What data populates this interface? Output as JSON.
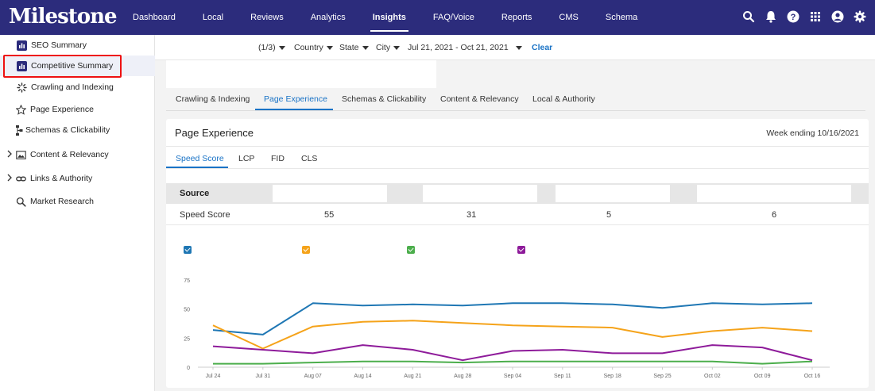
{
  "app": {
    "logo": "Milestone"
  },
  "nav": {
    "items": [
      {
        "label": "Dashboard"
      },
      {
        "label": "Local"
      },
      {
        "label": "Reviews"
      },
      {
        "label": "Analytics"
      },
      {
        "label": "Insights"
      },
      {
        "label": "FAQ/Voice"
      },
      {
        "label": "Reports"
      },
      {
        "label": "CMS"
      },
      {
        "label": "Schema"
      }
    ],
    "active": "Insights",
    "icons": [
      "search-icon",
      "bell-icon",
      "help-icon",
      "apps-grid-icon",
      "account-icon",
      "settings-gear-icon"
    ]
  },
  "sidebar": {
    "items": [
      {
        "label": "SEO Summary",
        "icon": "bar-chart-icon"
      },
      {
        "label": "Competitive Summary",
        "icon": "bar-chart-icon"
      },
      {
        "label": "Crawling and Indexing",
        "icon": "spinner-icon"
      },
      {
        "label": "Page Experience",
        "icon": "star-outline-icon"
      },
      {
        "label": "Schemas & Clickability",
        "icon": "schema-tree-icon"
      },
      {
        "label": "Content & Relevancy",
        "icon": "image-icon"
      },
      {
        "label": "Links & Authority",
        "icon": "link-icon"
      },
      {
        "label": "Market Research",
        "icon": "search-icon"
      }
    ],
    "active": "Competitive Summary"
  },
  "filters": {
    "pager": "(1/3)",
    "country": "Country",
    "state": "State",
    "city": "City",
    "date_range": "Jul 21, 2021 - Oct 21, 2021",
    "clear": "Clear"
  },
  "tabs": {
    "items": [
      "Crawling & Indexing",
      "Page Experience",
      "Schemas & Clickability",
      "Content & Relevancy",
      "Local & Authority"
    ],
    "active": "Page Experience"
  },
  "card": {
    "title": "Page Experience",
    "date": "Week ending 10/16/2021",
    "subtabs": [
      "Speed Score",
      "LCP",
      "FID",
      "CLS"
    ],
    "active_subtab": "Speed Score",
    "source_label": "Source",
    "speed_label": "Speed Score",
    "speed_values": [
      "55",
      "31",
      "5",
      "6"
    ]
  },
  "colors": {
    "nav_bg": "#2c2c7c",
    "accent": "#1a73c6",
    "series": [
      "#1f77b4",
      "#f5a31a",
      "#4cae4c",
      "#8e1b9a"
    ]
  },
  "chart_data": {
    "type": "line",
    "x": [
      "Jul 24",
      "Jul 31",
      "Aug 07",
      "Aug 14",
      "Aug 21",
      "Aug 28",
      "Sep 04",
      "Sep 11",
      "Sep 18",
      "Sep 25",
      "Oct 02",
      "Oct 09",
      "Oct 16"
    ],
    "yticks": [
      "0",
      "25",
      "50",
      "75"
    ],
    "ylim": [
      0,
      75
    ],
    "grid": "horizontal-baseline",
    "series": [
      {
        "color": "#1f77b4",
        "values": [
          32,
          28,
          55,
          53,
          54,
          53,
          55,
          55,
          54,
          51,
          55,
          54,
          55
        ]
      },
      {
        "color": "#f5a31a",
        "values": [
          36,
          16,
          35,
          39,
          40,
          38,
          36,
          35,
          34,
          26,
          31,
          34,
          31
        ]
      },
      {
        "color": "#4cae4c",
        "values": [
          3,
          3,
          4,
          5,
          5,
          4,
          5,
          5,
          5,
          5,
          5,
          3,
          5
        ]
      },
      {
        "color": "#8e1b9a",
        "values": [
          18,
          15,
          12,
          19,
          15,
          6,
          14,
          15,
          12,
          12,
          19,
          17,
          6
        ]
      }
    ]
  }
}
